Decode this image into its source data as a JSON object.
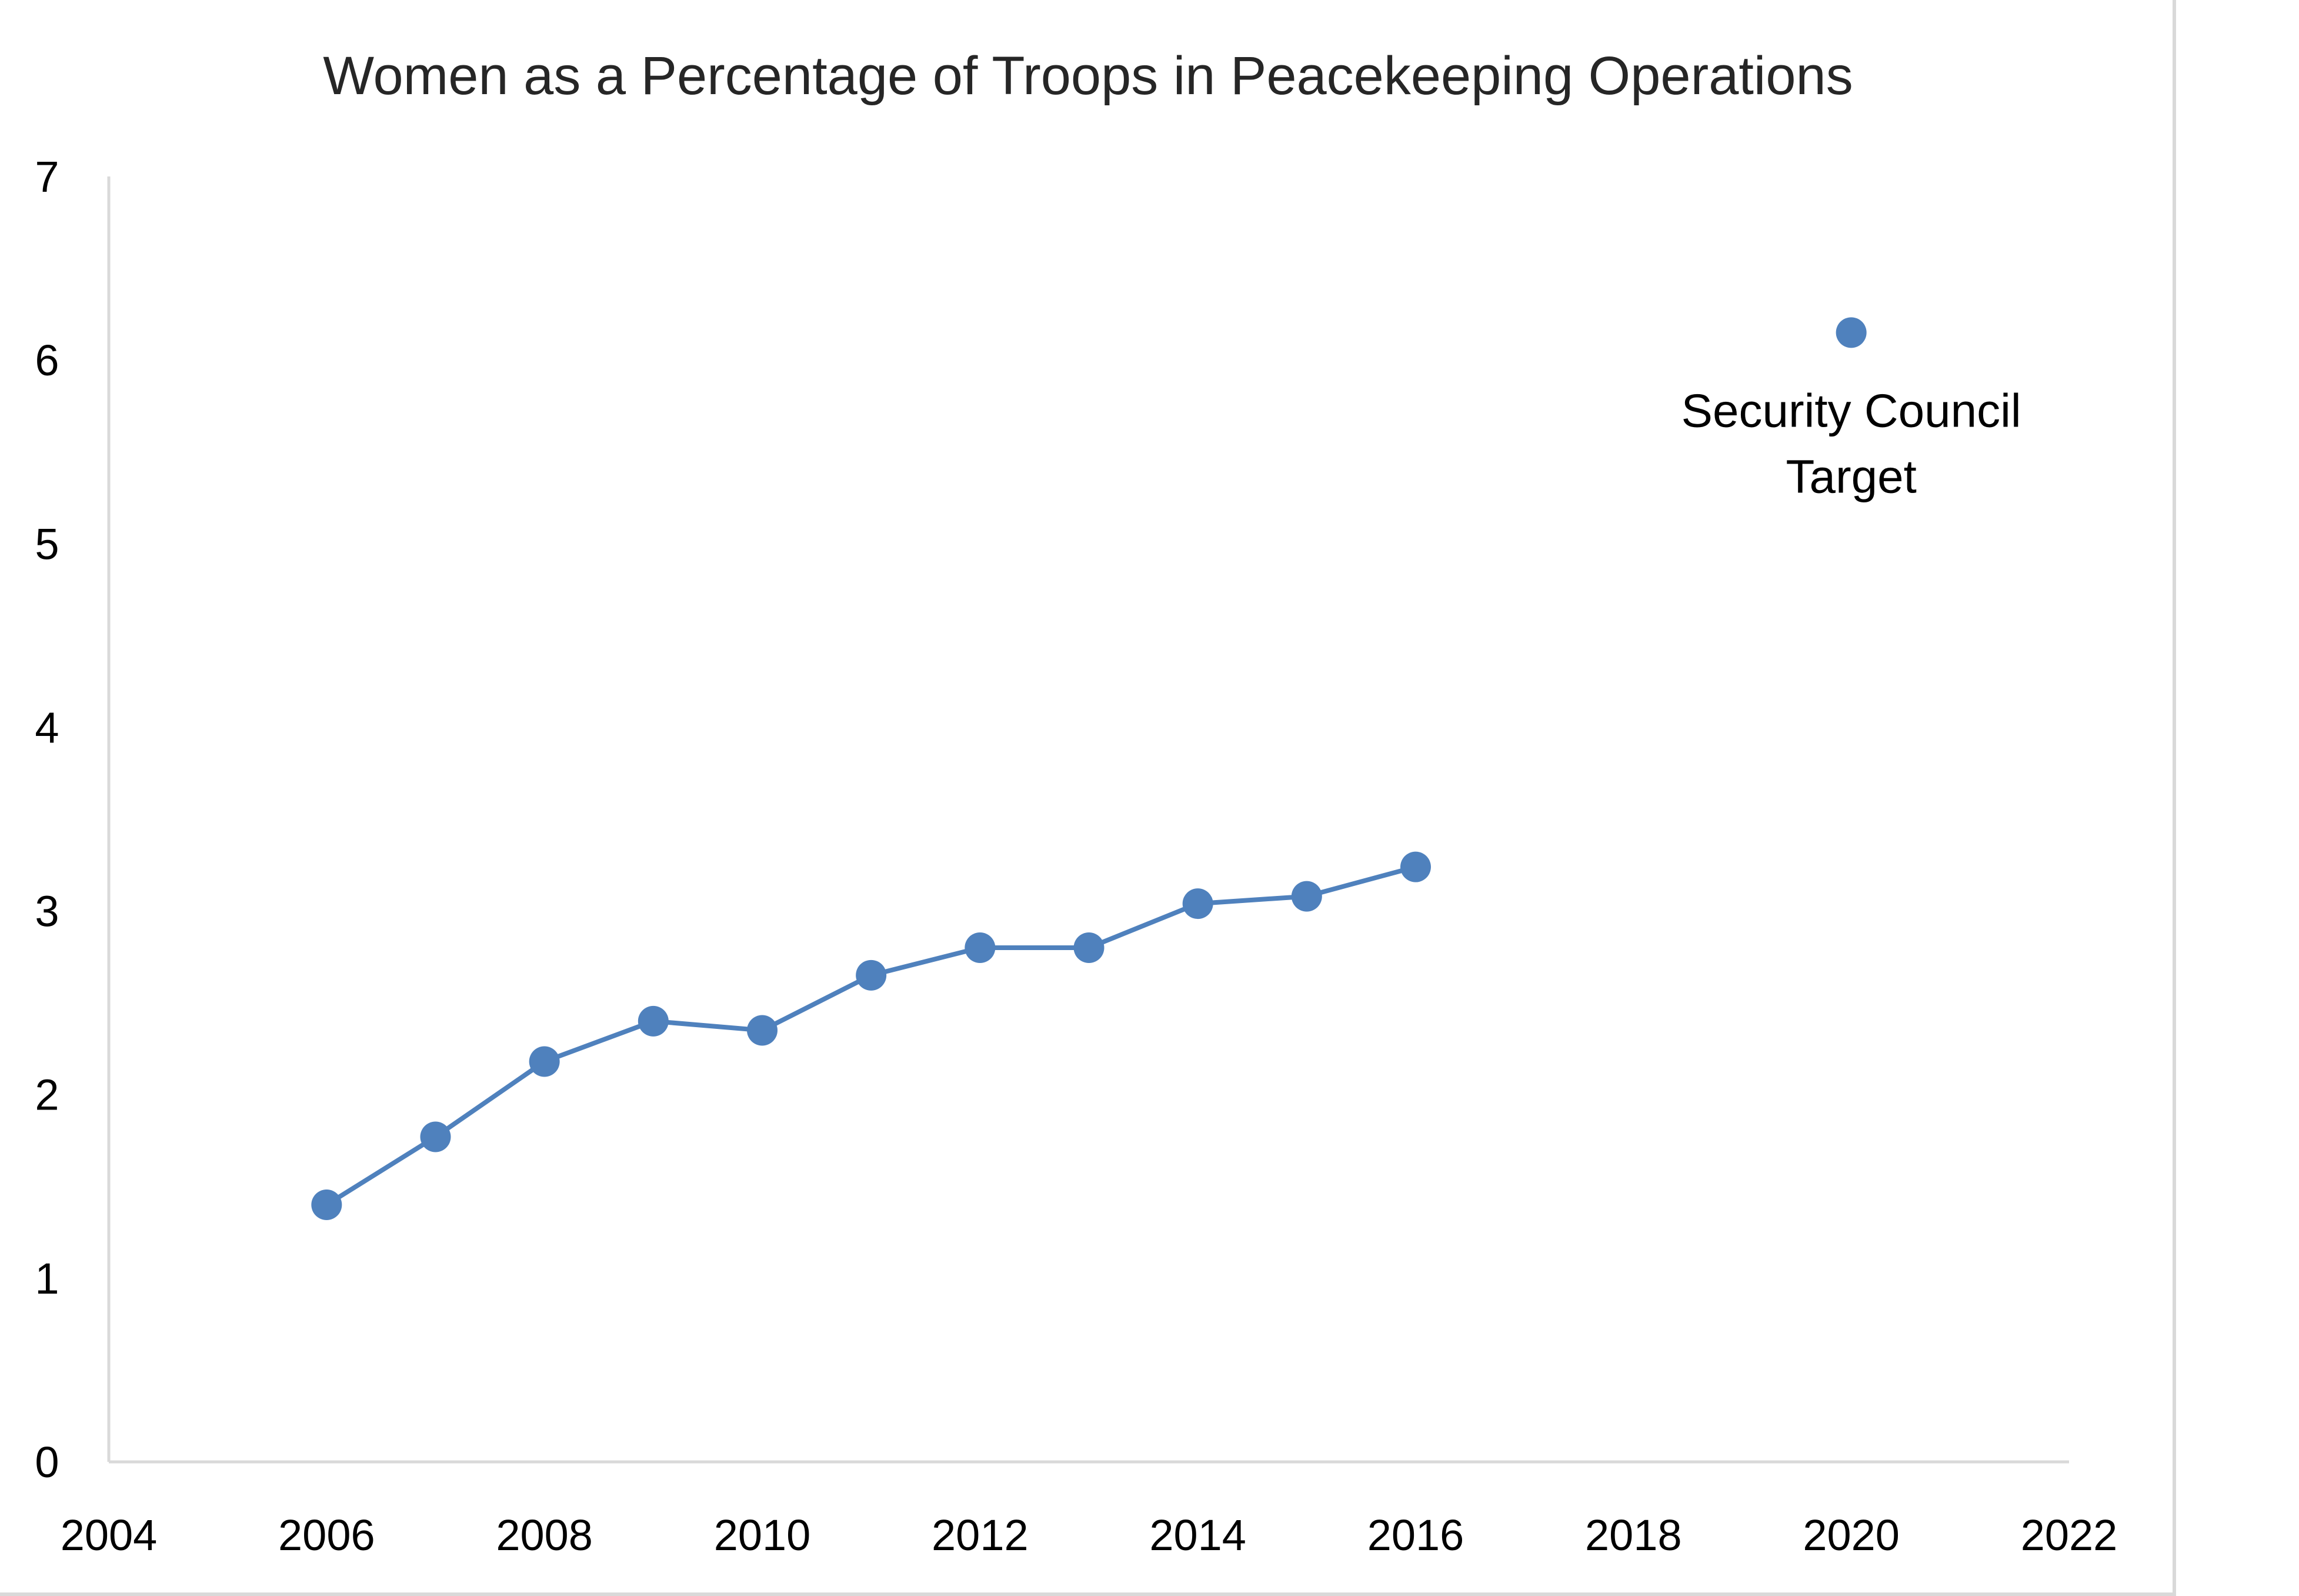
{
  "chart_data": {
    "type": "scatter",
    "title": "Women as a Percentage of Troops in Peacekeeping Operations",
    "xlabel": "",
    "ylabel": "",
    "xlim": [
      2004,
      2022
    ],
    "ylim": [
      0,
      7
    ],
    "x_ticks": [
      2004,
      2006,
      2008,
      2010,
      2012,
      2014,
      2016,
      2018,
      2020,
      2022
    ],
    "y_ticks": [
      0,
      1,
      2,
      3,
      4,
      5,
      6,
      7
    ],
    "grid": false,
    "legend": "none",
    "series": [
      {
        "mode": "lines+markers",
        "color": "#4f81bd",
        "x": [
          2006,
          2007,
          2008,
          2009,
          2010,
          2011,
          2012,
          2013,
          2014,
          2015,
          2016
        ],
        "y": [
          1.4,
          1.77,
          2.18,
          2.4,
          2.35,
          2.65,
          2.8,
          2.8,
          3.04,
          3.08,
          3.24
        ]
      },
      {
        "mode": "markers",
        "color": "#4f81bd",
        "x": [
          2020
        ],
        "y": [
          6.15
        ]
      }
    ],
    "annotations": [
      {
        "text_lines": [
          "Security Council",
          "Target"
        ],
        "x": 2020,
        "y": 6.15
      }
    ]
  }
}
